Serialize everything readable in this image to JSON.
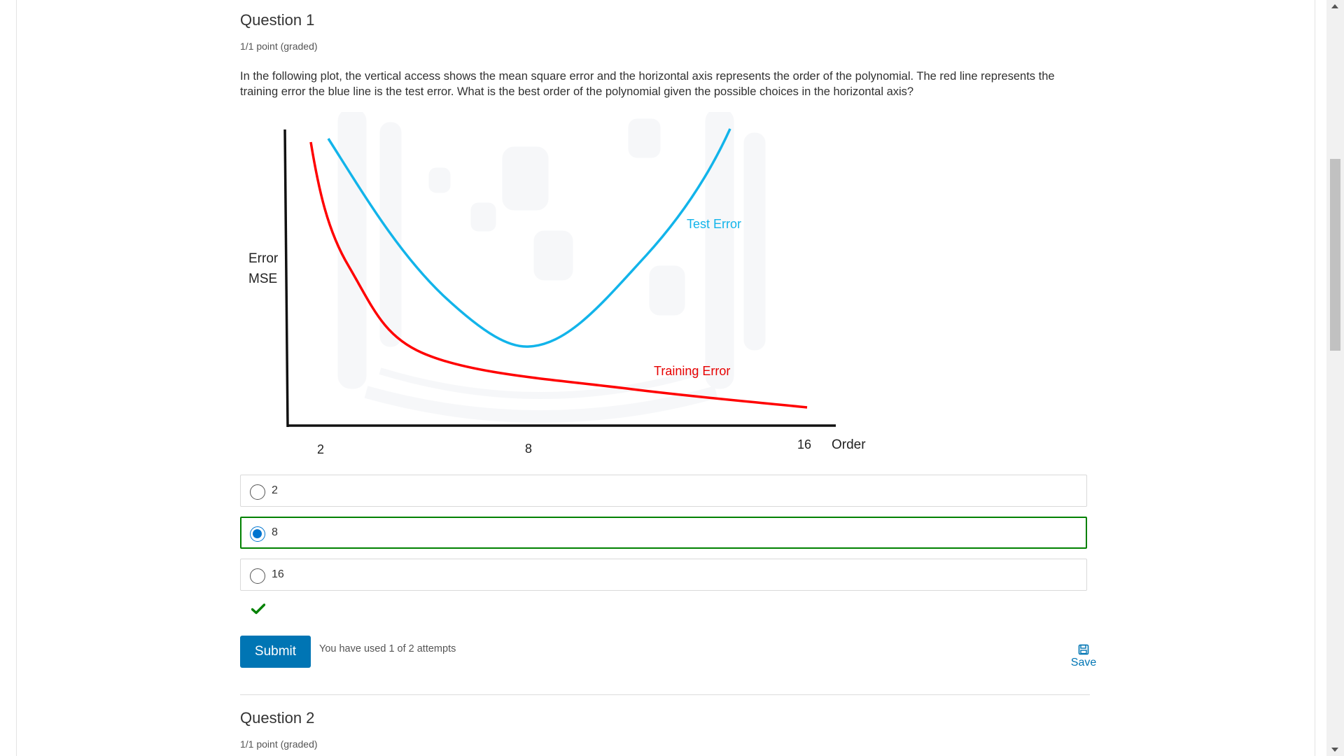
{
  "question1": {
    "title": "Question 1",
    "points": "1/1 point (graded)",
    "text": "In the following plot, the vertical access shows the mean square error and the horizontal axis represents the order of the polynomial. The red line represents the training error the blue line is the test error. What is the best order of the polynomial given the possible choices in the horizontal axis?",
    "plot": {
      "ylabel_line1": "Error",
      "ylabel_line2": "MSE",
      "xlabel": "Order",
      "xticks": [
        "2",
        "8",
        "16"
      ],
      "test_label": "Test Error",
      "train_label": "Training Error",
      "colors": {
        "test": "#12b4ea",
        "train": "#ff0000",
        "axis": "#111111"
      }
    },
    "options": [
      {
        "label": "2",
        "selected": false
      },
      {
        "label": "8",
        "selected": true
      },
      {
        "label": "16",
        "selected": false
      }
    ],
    "submit_label": "Submit",
    "attempts_text": "You have used 1 of 2 attempts",
    "save_label": "Save"
  },
  "question2": {
    "title": "Question 2",
    "points": "1/1 point (graded)"
  },
  "colors": {
    "accent": "#0075b4",
    "correct": "#008100",
    "radio_selected": "#0075cf"
  }
}
